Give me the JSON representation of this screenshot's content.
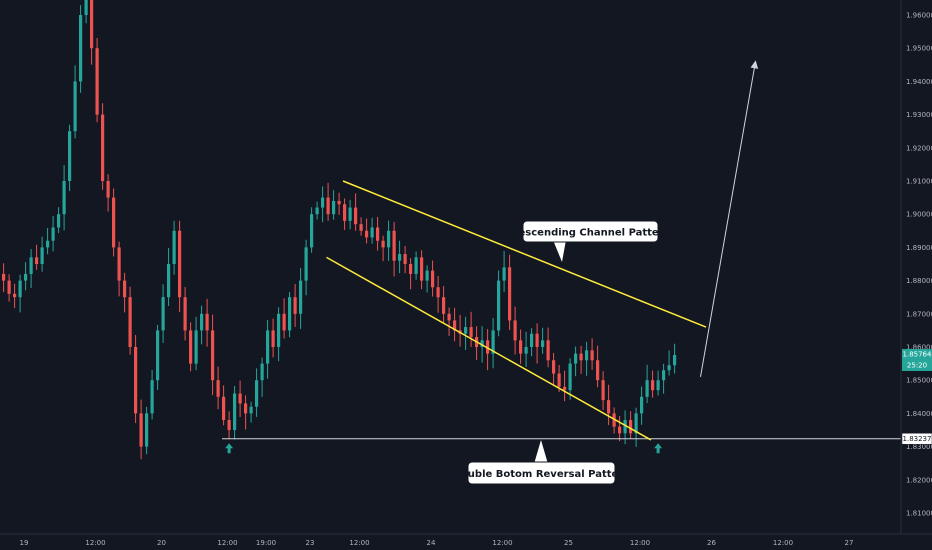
{
  "chart_data": {
    "type": "candlestick",
    "colors": {
      "background": "#131722",
      "up": "#26a69a",
      "down": "#ef5350",
      "channel": "#ffeb3b",
      "support": "#d1d4dc",
      "axis_text": "#b2b5be",
      "marker": "#26a69a",
      "last_price_bg": "#26a69a"
    },
    "y_axis": {
      "range": [
        1.8,
        1.965
      ],
      "ticks": [
        "1.96000",
        "1.95000",
        "1.94000",
        "1.93000",
        "1.92000",
        "1.91000",
        "1.90000",
        "1.89000",
        "1.88000",
        "1.87000",
        "1.86000",
        "1.85000",
        "1.84000",
        "1.83000",
        "1.82000",
        "1.81000"
      ],
      "tick_values": [
        1.96,
        1.95,
        1.94,
        1.93,
        1.92,
        1.91,
        1.9,
        1.89,
        1.88,
        1.87,
        1.86,
        1.85,
        1.84,
        1.83,
        1.82,
        1.81
      ]
    },
    "x_axis": {
      "ticks": [
        "19",
        "12:00",
        "20",
        "12:00",
        "19:00",
        "23",
        "12:00",
        "24",
        "12:00",
        "25",
        "12:00",
        "26",
        "12:00",
        "27"
      ],
      "tick_bars": [
        4,
        17,
        29,
        41,
        48,
        56,
        65,
        78,
        91,
        103,
        116,
        129,
        142,
        154
      ]
    },
    "last_price": "1.85764",
    "countdown": "25:20",
    "support_price": "1.83237",
    "support_value": 1.83237,
    "annotations": {
      "channel_label": "Descending Channel Pattern",
      "double_bottom_label": "Double Botom Reversal Pattern"
    },
    "channel_upper": [
      [
        62,
        1.91
      ],
      [
        128,
        1.866
      ]
    ],
    "channel_lower": [
      [
        59,
        1.887
      ],
      [
        118,
        1.832
      ]
    ],
    "projection": [
      [
        127,
        1.851
      ],
      [
        137,
        1.946
      ]
    ],
    "double_bottom_markers": [
      [
        41,
        1.8295
      ],
      [
        119,
        1.8295
      ]
    ],
    "closes": [
      1.88,
      1.876,
      1.875,
      1.88,
      1.882,
      1.887,
      1.885,
      1.89,
      1.892,
      1.896,
      1.9,
      1.91,
      1.925,
      1.94,
      1.96,
      1.965,
      1.95,
      1.93,
      1.91,
      1.905,
      1.89,
      1.88,
      1.875,
      1.86,
      1.84,
      1.83,
      1.84,
      1.85,
      1.865,
      1.875,
      1.885,
      1.895,
      1.875,
      1.865,
      1.855,
      1.865,
      1.87,
      1.865,
      1.85,
      1.845,
      1.838,
      1.835,
      1.846,
      1.843,
      1.84,
      1.842,
      1.85,
      1.855,
      1.865,
      1.86,
      1.87,
      1.865,
      1.875,
      1.87,
      1.88,
      1.89,
      1.9,
      1.902,
      1.905,
      1.9,
      1.904,
      1.903,
      1.898,
      1.902,
      1.897,
      1.895,
      1.893,
      1.896,
      1.892,
      1.89,
      1.895,
      1.886,
      1.888,
      1.885,
      1.882,
      1.887,
      1.88,
      1.883,
      1.878,
      1.875,
      1.87,
      1.868,
      1.865,
      1.864,
      1.866,
      1.863,
      1.86,
      1.862,
      1.858,
      1.865,
      1.88,
      1.884,
      1.868,
      1.862,
      1.858,
      1.86,
      1.864,
      1.86,
      1.862,
      1.856,
      1.852,
      1.848,
      1.847,
      1.855,
      1.858,
      1.856,
      1.859,
      1.856,
      1.85,
      1.844,
      1.84,
      1.836,
      1.834,
      1.838,
      1.834,
      1.84,
      1.845,
      1.85,
      1.847,
      1.85,
      1.853,
      1.8545,
      1.8576
    ]
  }
}
